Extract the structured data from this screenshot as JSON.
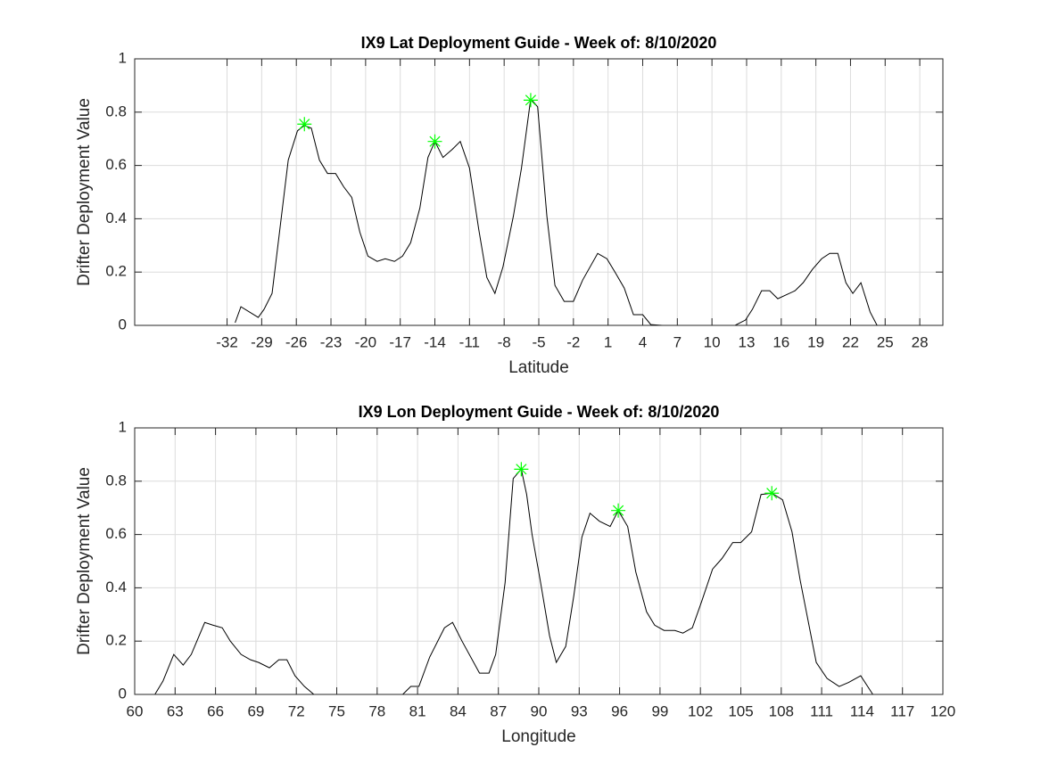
{
  "chart_data": [
    {
      "type": "line",
      "title": "IX9 Lat Deployment Guide - Week of: 8/10/2020",
      "xlabel": "Latitude",
      "ylabel": "Drifter Deployment Value",
      "xlim": [
        -40,
        30
      ],
      "xticks": [
        -32,
        -29,
        -26,
        -23,
        -20,
        -17,
        -14,
        -11,
        -8,
        -5,
        -2,
        1,
        4,
        7,
        10,
        13,
        16,
        19,
        22,
        25,
        28
      ],
      "ylim": [
        0,
        1
      ],
      "yticks": [
        0,
        0.2,
        0.4,
        0.6,
        0.8,
        1
      ],
      "grid": true,
      "series": [
        {
          "color": "#000000",
          "marker": "none",
          "x": [
            -31.3,
            -30.8,
            -29.3,
            -28.8,
            -28.1,
            -26.7,
            -25.9,
            -25.3,
            -24.7,
            -24.0,
            -23.3,
            -22.6,
            -21.9,
            -21.2,
            -20.5,
            -19.8,
            -19.0,
            -18.3,
            -17.5,
            -16.8,
            -16.1,
            -15.3,
            -14.6,
            -14.0,
            -13.3,
            -12.5,
            -11.8,
            -11.0,
            -10.2,
            -9.5,
            -8.8,
            -8.1,
            -7.2,
            -6.5,
            -5.7,
            -5.1,
            -4.3,
            -3.6,
            -2.8,
            -2.0,
            -1.2,
            0.1,
            0.9,
            1.6,
            2.4,
            3.2,
            4.0,
            4.7,
            5.7,
            6.9,
            9.1,
            10.3,
            12.0,
            12.9,
            13.5,
            14.3,
            15.0,
            15.7,
            17.2,
            17.9,
            18.7,
            19.5,
            20.2,
            20.9,
            21.6,
            22.2,
            22.9,
            23.7,
            24.3
          ],
          "values": [
            0.01,
            0.07,
            0.03,
            0.06,
            0.12,
            0.62,
            0.73,
            0.75,
            0.74,
            0.62,
            0.57,
            0.57,
            0.52,
            0.48,
            0.35,
            0.26,
            0.24,
            0.25,
            0.24,
            0.26,
            0.31,
            0.44,
            0.63,
            0.69,
            0.63,
            0.66,
            0.69,
            0.59,
            0.36,
            0.18,
            0.12,
            0.22,
            0.41,
            0.59,
            0.85,
            0.82,
            0.41,
            0.15,
            0.09,
            0.09,
            0.17,
            0.27,
            0.25,
            0.2,
            0.14,
            0.04,
            0.04,
            0.003,
            0,
            0,
            0,
            0,
            0,
            0.02,
            0.06,
            0.13,
            0.13,
            0.1,
            0.13,
            0.16,
            0.21,
            0.25,
            0.27,
            0.27,
            0.16,
            0.12,
            0.16,
            0.05,
            0
          ]
        },
        {
          "color": "#00ff00",
          "marker": "asterisk",
          "x": [
            -25.3,
            -14.0,
            -5.7
          ],
          "values": [
            0.755,
            0.69,
            0.845
          ]
        }
      ]
    },
    {
      "type": "line",
      "title": "IX9 Lon Deployment Guide - Week of: 8/10/2020",
      "xlabel": "Longitude",
      "ylabel": "Drifter Deployment Value",
      "xlim": [
        60,
        120
      ],
      "xticks": [
        60,
        63,
        66,
        69,
        72,
        75,
        78,
        81,
        84,
        87,
        90,
        93,
        96,
        99,
        102,
        105,
        108,
        111,
        114,
        117,
        120
      ],
      "ylim": [
        0,
        1
      ],
      "yticks": [
        0,
        0.2,
        0.4,
        0.6,
        0.8,
        1
      ],
      "grid": true,
      "series": [
        {
          "color": "#000000",
          "marker": "none",
          "x": [
            61.5,
            62.1,
            62.9,
            63.6,
            64.2,
            65.2,
            65.8,
            66.5,
            67.1,
            67.9,
            68.6,
            69.2,
            70.0,
            70.7,
            71.3,
            71.9,
            72.6,
            73.3,
            74.5,
            76.0,
            77.9,
            79.9,
            80.5,
            81.1,
            81.9,
            83.0,
            83.6,
            84.3,
            85.6,
            86.3,
            86.8,
            87.5,
            88.1,
            88.7,
            89.1,
            89.5,
            90.1,
            90.8,
            91.3,
            92.0,
            92.6,
            93.2,
            93.8,
            94.5,
            95.3,
            95.9,
            96.6,
            97.2,
            98.0,
            98.6,
            99.3,
            100.1,
            100.7,
            101.4,
            102.1,
            102.9,
            103.6,
            104.4,
            105.0,
            105.8,
            106.5,
            107.3,
            108.1,
            108.8,
            109.4,
            110.6,
            111.4,
            112.3,
            113.0,
            113.9,
            114.8
          ],
          "values": [
            0,
            0.05,
            0.15,
            0.11,
            0.15,
            0.27,
            0.26,
            0.25,
            0.2,
            0.15,
            0.13,
            0.12,
            0.1,
            0.13,
            0.13,
            0.07,
            0.03,
            0,
            0,
            0,
            0,
            0,
            0.03,
            0.03,
            0.14,
            0.25,
            0.27,
            0.2,
            0.08,
            0.08,
            0.15,
            0.42,
            0.81,
            0.845,
            0.75,
            0.6,
            0.43,
            0.22,
            0.12,
            0.18,
            0.37,
            0.59,
            0.68,
            0.65,
            0.63,
            0.69,
            0.63,
            0.46,
            0.31,
            0.26,
            0.24,
            0.24,
            0.23,
            0.25,
            0.35,
            0.47,
            0.51,
            0.57,
            0.57,
            0.61,
            0.75,
            0.755,
            0.73,
            0.61,
            0.43,
            0.12,
            0.06,
            0.03,
            0.045,
            0.07,
            0
          ]
        },
        {
          "color": "#00ff00",
          "marker": "asterisk",
          "x": [
            88.7,
            95.9,
            107.3
          ],
          "values": [
            0.845,
            0.69,
            0.755
          ]
        }
      ]
    }
  ]
}
